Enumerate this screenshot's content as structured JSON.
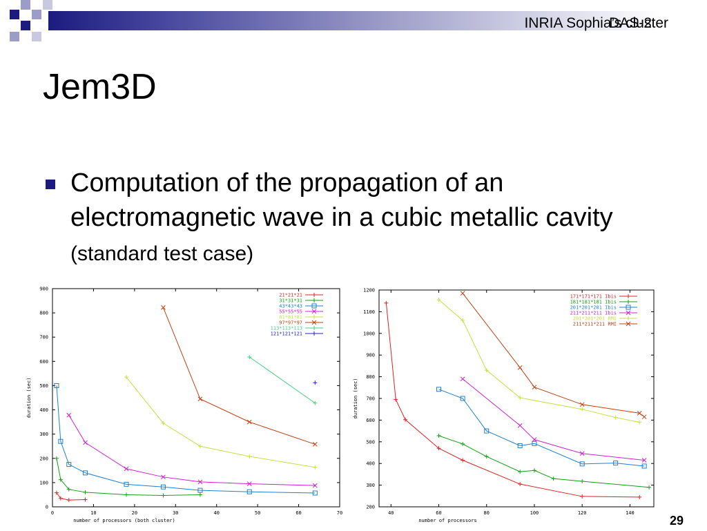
{
  "header": {
    "title_line1": "INRIA Sophia’s cluster",
    "title_line2": "DAS-2"
  },
  "slide": {
    "title": "Jem3D",
    "bullet_main": "Computation of the propagation of an electromagnetic wave in a cubic metallic cavity",
    "bullet_note": "(standard test case)",
    "page_number": "29"
  },
  "colors": {
    "accent": "#1c1c80"
  },
  "chart_data": [
    {
      "type": "line",
      "xlabel": "number of processors (both cluster)",
      "ylabel": "duration (sec)",
      "xlim": [
        0,
        70
      ],
      "ylim": [
        0,
        900
      ],
      "xticks": [
        0,
        10,
        20,
        30,
        40,
        50,
        60,
        70
      ],
      "yticks": [
        0,
        100,
        200,
        300,
        400,
        500,
        600,
        700,
        800,
        900
      ],
      "legend_position": "top-right",
      "series": [
        {
          "name": "21*21*21",
          "color": "#e02020",
          "marker": "+",
          "x": [
            1,
            2,
            4,
            8
          ],
          "y": [
            58,
            35,
            28,
            30
          ]
        },
        {
          "name": "31*31*31",
          "color": "#10a010",
          "marker": "+",
          "x": [
            1,
            2,
            4,
            8,
            18,
            27,
            36
          ],
          "y": [
            200,
            112,
            72,
            60,
            50,
            47,
            50
          ]
        },
        {
          "name": "43*43*43",
          "color": "#1e7fd0",
          "marker": "box",
          "x": [
            1,
            2,
            4,
            8,
            18,
            27,
            36,
            48,
            64
          ],
          "y": [
            500,
            270,
            175,
            140,
            93,
            82,
            68,
            62,
            57
          ]
        },
        {
          "name": "55*55*55",
          "color": "#d020d0",
          "marker": "x",
          "x": [
            4,
            8,
            18,
            27,
            36,
            48,
            64
          ],
          "y": [
            378,
            265,
            157,
            123,
            103,
            95,
            88
          ]
        },
        {
          "name": "81*81*81",
          "color": "#c8e040",
          "marker": "+",
          "x": [
            18,
            27,
            36,
            48,
            64
          ],
          "y": [
            535,
            345,
            250,
            208,
            163
          ]
        },
        {
          "name": "97*97*97",
          "color": "#c04010",
          "marker": "x",
          "x": [
            27,
            36,
            48,
            64
          ],
          "y": [
            822,
            445,
            350,
            258
          ]
        },
        {
          "name": "113*113*113",
          "color": "#40d080",
          "marker": "+",
          "x": [
            48,
            64
          ],
          "y": [
            618,
            428
          ]
        },
        {
          "name": "121*121*121",
          "color": "#2020c0",
          "marker": "+",
          "x": [
            64
          ],
          "y": [
            512
          ]
        }
      ]
    },
    {
      "type": "line",
      "xlabel": "number of processors",
      "ylabel": "duration (sec)",
      "xlim": [
        35,
        150
      ],
      "ylim": [
        200,
        1200
      ],
      "xticks": [
        40,
        60,
        80,
        100,
        120,
        140
      ],
      "yticks": [
        200,
        300,
        400,
        500,
        600,
        700,
        800,
        900,
        1000,
        1100,
        1200
      ],
      "legend_position": "top-right",
      "series": [
        {
          "name": "171*171*171 Ibis",
          "color": "#e02020",
          "marker": "+",
          "x": [
            38,
            42,
            46,
            60,
            70,
            94,
            120,
            144
          ],
          "y": [
            1140,
            695,
            602,
            470,
            415,
            305,
            248,
            245
          ]
        },
        {
          "name": "181*181*181 Ibis",
          "color": "#10a010",
          "marker": "+",
          "x": [
            60,
            70,
            80,
            94,
            100,
            108,
            120,
            148
          ],
          "y": [
            528,
            490,
            432,
            362,
            368,
            330,
            318,
            290
          ]
        },
        {
          "name": "201*201*201 Ibis",
          "color": "#1e7fd0",
          "marker": "box",
          "x": [
            60,
            70,
            80,
            94,
            100,
            120,
            134,
            146
          ],
          "y": [
            742,
            700,
            550,
            482,
            492,
            398,
            402,
            388
          ]
        },
        {
          "name": "211*211*211 Ibis",
          "color": "#d020d0",
          "marker": "x",
          "x": [
            70,
            94,
            100,
            120,
            146
          ],
          "y": [
            790,
            575,
            510,
            446,
            415
          ]
        },
        {
          "name": "201*201*201 RMI",
          "color": "#c8e040",
          "marker": "+",
          "x": [
            60,
            70,
            80,
            94,
            120,
            134,
            144
          ],
          "y": [
            1155,
            1060,
            830,
            703,
            650,
            612,
            590
          ]
        },
        {
          "name": "211*211*211 RMI",
          "color": "#c04010",
          "marker": "x",
          "x": [
            70,
            94,
            100,
            120,
            144,
            146
          ],
          "y": [
            1185,
            842,
            752,
            672,
            632,
            615
          ]
        }
      ]
    }
  ]
}
